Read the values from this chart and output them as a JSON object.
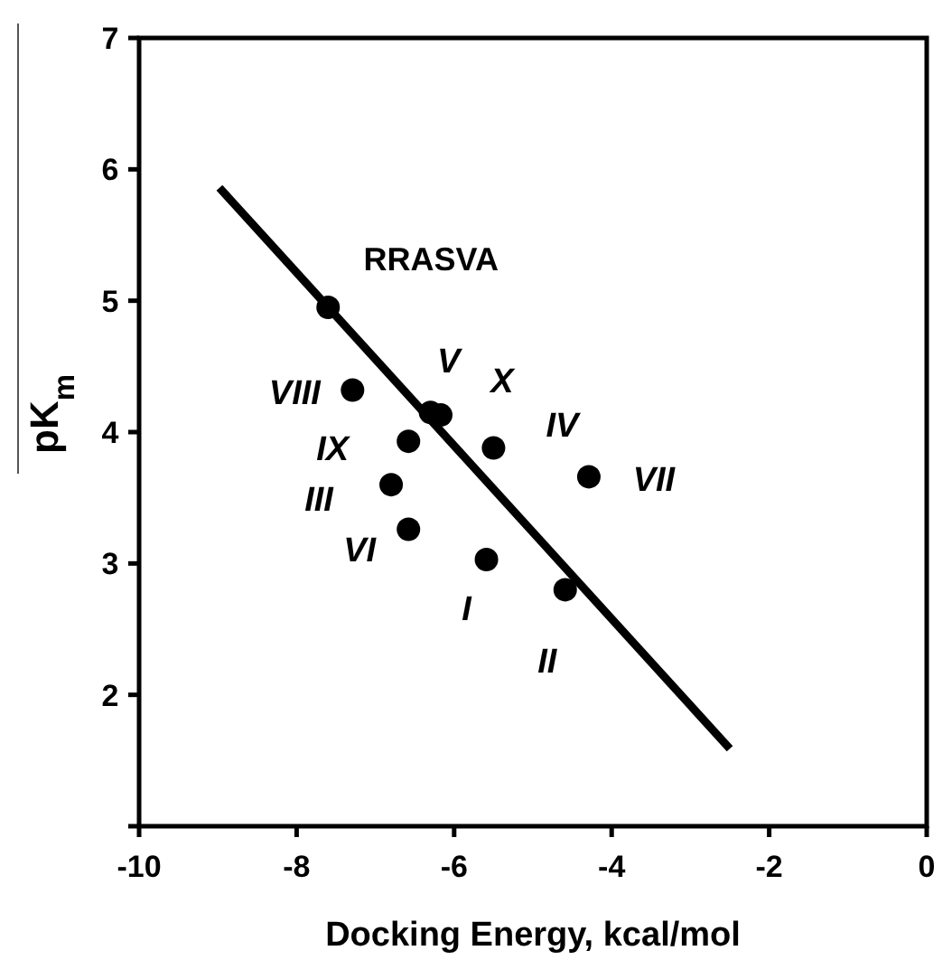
{
  "chart_data": {
    "type": "scatter",
    "xlabel": "Docking Energy, kcal/mol",
    "ylabel": "pK$_{m}$",
    "xlim": [
      -10,
      0
    ],
    "ylim": [
      1,
      7
    ],
    "xticks": [
      -10,
      -8,
      -6,
      -4,
      -2,
      0
    ],
    "yticks": [
      {
        "value": 1,
        "label": null
      },
      2,
      3,
      4,
      5,
      6,
      7
    ],
    "grid": false,
    "series": [
      {
        "marker": "circle",
        "color": "#000000",
        "x": [
          -7.6,
          -7.29,
          -6.3,
          -6.17,
          -6.58,
          -5.5,
          -6.8,
          -4.29,
          -6.58,
          -5.59,
          -4.59
        ],
        "values": [
          4.95,
          4.32,
          4.15,
          4.13,
          3.93,
          3.88,
          3.6,
          3.66,
          3.26,
          3.03,
          2.8
        ]
      },
      {
        "type": "line",
        "color": "#000000",
        "line_style": "solid",
        "x": [
          -8.98,
          -2.5
        ],
        "values": [
          5.86,
          1.59
        ]
      }
    ],
    "annotations": [
      {
        "text": "RRASVA",
        "x": -7.6,
        "y": 4.95
      },
      {
        "text": "VIII",
        "x": -7.29,
        "y": 4.32
      },
      {
        "text": "V",
        "x": -6.3,
        "y": 4.15
      },
      {
        "text": "X",
        "x": -6.17,
        "y": 4.13
      },
      {
        "text": "IV",
        "x": -5.5,
        "y": 3.88
      },
      {
        "text": "VII",
        "x": -4.29,
        "y": 3.66
      },
      {
        "text": "IX",
        "x": -6.58,
        "y": 3.93
      },
      {
        "text": "III",
        "x": -6.8,
        "y": 3.6
      },
      {
        "text": "VI",
        "x": -6.58,
        "y": 3.26
      },
      {
        "text": "I",
        "x": -5.59,
        "y": 3.03
      },
      {
        "text": "II",
        "x": -4.59,
        "y": 2.8
      }
    ]
  }
}
